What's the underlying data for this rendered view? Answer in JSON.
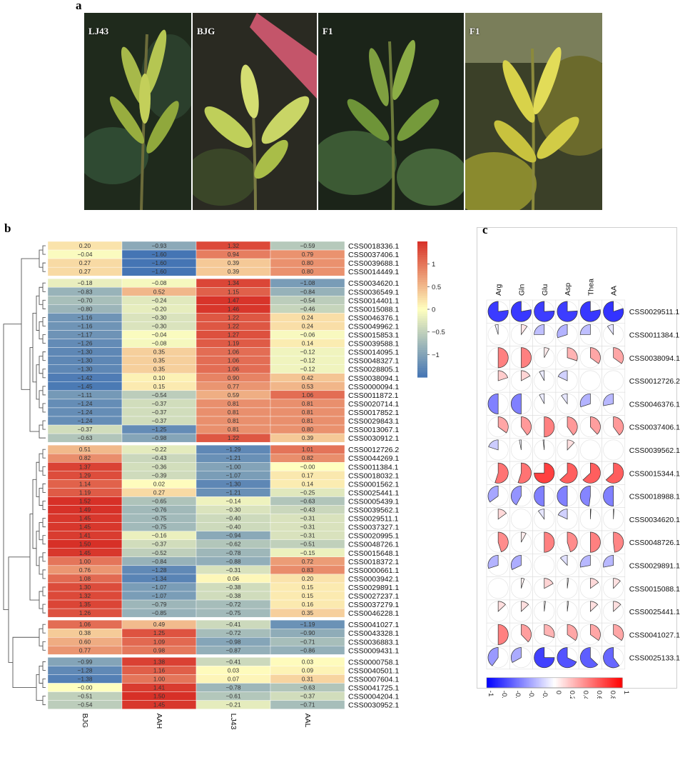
{
  "figure_labels": {
    "a": "a",
    "b": "b",
    "c": "c"
  },
  "photos": [
    {
      "label": "LJ43",
      "tone": "#8ea63a"
    },
    {
      "label": "BJG",
      "tone": "#b9c64a"
    },
    {
      "label": "F1",
      "tone": "#6b8d33"
    },
    {
      "label": "F1",
      "tone": "#c9c33a"
    }
  ],
  "chart_data": [
    {
      "type": "heatmap",
      "title": "",
      "columns": [
        "BJG",
        "AAH",
        "LJ43",
        "AAL"
      ],
      "color_scale": {
        "min": -1.5,
        "max": 1.5,
        "ticks": [
          1,
          0.5,
          0,
          -0.5,
          -1
        ],
        "tick_labels": [
          "1",
          "0.5",
          "0",
          "−0.5",
          "−1"
        ],
        "low": "#4575b4",
        "mid": "#ffffbf",
        "high": "#d73027"
      },
      "rows": [
        {
          "gene": "CSS0018336.1",
          "values": [
            0.2,
            -0.93,
            1.32,
            -0.59
          ]
        },
        {
          "gene": "CSS0037406.1",
          "values": [
            -0.04,
            -1.6,
            0.94,
            0.79
          ]
        },
        {
          "gene": "CSS0039688.1",
          "values": [
            0.27,
            -1.6,
            0.39,
            0.8
          ]
        },
        {
          "gene": "CSS0014449.1",
          "values": [
            0.27,
            -1.6,
            0.39,
            0.8
          ]
        },
        {
          "gene": "CSS0034620.1",
          "values": [
            -0.18,
            -0.08,
            1.34,
            -1.08
          ]
        },
        {
          "gene": "CSS0036549.1",
          "values": [
            -0.83,
            0.52,
            1.15,
            -0.84
          ]
        },
        {
          "gene": "CSS0014401.1",
          "values": [
            -0.7,
            -0.24,
            1.47,
            -0.54
          ]
        },
        {
          "gene": "CSS0015088.1",
          "values": [
            -0.8,
            -0.2,
            1.46,
            -0.46
          ]
        },
        {
          "gene": "CSS0046376.1",
          "values": [
            -1.16,
            -0.3,
            1.22,
            0.24
          ]
        },
        {
          "gene": "CSS0049962.1",
          "values": [
            -1.16,
            -0.3,
            1.22,
            0.24
          ]
        },
        {
          "gene": "CSS0015853.1",
          "values": [
            -1.17,
            -0.04,
            1.27,
            -0.06
          ]
        },
        {
          "gene": "CSS0039588.1",
          "values": [
            -1.26,
            -0.08,
            1.19,
            0.14
          ]
        },
        {
          "gene": "CSS0014095.1",
          "values": [
            -1.3,
            0.35,
            1.06,
            -0.12
          ]
        },
        {
          "gene": "CSS0048327.1",
          "values": [
            -1.3,
            0.35,
            1.06,
            -0.12
          ]
        },
        {
          "gene": "CSS0028805.1",
          "values": [
            -1.3,
            0.35,
            1.06,
            -0.12
          ]
        },
        {
          "gene": "CSS0038094.1",
          "values": [
            -1.42,
            0.1,
            0.9,
            0.42
          ]
        },
        {
          "gene": "CSS0000094.1",
          "values": [
            -1.45,
            0.15,
            0.77,
            0.53
          ]
        },
        {
          "gene": "CSS0011872.1",
          "values": [
            -1.11,
            -0.54,
            0.59,
            1.06
          ]
        },
        {
          "gene": "CSS0020714.1",
          "values": [
            -1.24,
            -0.37,
            0.81,
            0.81
          ]
        },
        {
          "gene": "CSS0017852.1",
          "values": [
            -1.24,
            -0.37,
            0.81,
            0.81
          ]
        },
        {
          "gene": "CSS0029843.1",
          "values": [
            -1.24,
            -0.37,
            0.81,
            0.81
          ]
        },
        {
          "gene": "CSS0013067.1",
          "values": [
            -0.37,
            -1.25,
            0.81,
            0.8
          ]
        },
        {
          "gene": "CSS0030912.1",
          "values": [
            -0.63,
            -0.98,
            1.22,
            0.39
          ]
        },
        {
          "gene": "CSS0012726.2",
          "values": [
            0.51,
            -0.22,
            -1.29,
            1.01
          ]
        },
        {
          "gene": "CSS0044269.1",
          "values": [
            0.82,
            -0.43,
            -1.21,
            0.82
          ]
        },
        {
          "gene": "CSS0011384.1",
          "values": [
            1.37,
            -0.36,
            -1.0,
            -0.0
          ]
        },
        {
          "gene": "CSS0018032.1",
          "values": [
            1.29,
            -0.39,
            -1.07,
            0.17
          ]
        },
        {
          "gene": "CSS0001562.1",
          "values": [
            1.14,
            0.02,
            -1.3,
            0.14
          ]
        },
        {
          "gene": "CSS0025441.1",
          "values": [
            1.19,
            0.27,
            -1.21,
            -0.25
          ]
        },
        {
          "gene": "CSS0005439.1",
          "values": [
            1.52,
            -0.65,
            -0.14,
            -0.63
          ]
        },
        {
          "gene": "CSS0039562.1",
          "values": [
            1.49,
            -0.76,
            -0.3,
            -0.43
          ]
        },
        {
          "gene": "CSS0029511.1",
          "values": [
            1.45,
            -0.75,
            -0.4,
            -0.31
          ]
        },
        {
          "gene": "CSS0037327.1",
          "values": [
            1.45,
            -0.75,
            -0.4,
            -0.31
          ]
        },
        {
          "gene": "CSS0020995.1",
          "values": [
            1.41,
            -0.16,
            -0.94,
            -0.31
          ]
        },
        {
          "gene": "CSS0048726.1",
          "values": [
            1.5,
            -0.37,
            -0.62,
            -0.51
          ]
        },
        {
          "gene": "CSS0015648.1",
          "values": [
            1.45,
            -0.52,
            -0.78,
            -0.15
          ]
        },
        {
          "gene": "CSS0018372.1",
          "values": [
            1.0,
            -0.84,
            -0.88,
            0.72
          ]
        },
        {
          "gene": "CSS0000661.1",
          "values": [
            0.76,
            -1.28,
            -0.31,
            0.83
          ]
        },
        {
          "gene": "CSS0003942.1",
          "values": [
            1.08,
            -1.34,
            0.06,
            0.2
          ]
        },
        {
          "gene": "CSS0029891.1",
          "values": [
            1.3,
            -1.07,
            -0.38,
            0.15
          ]
        },
        {
          "gene": "CSS0027237.1",
          "values": [
            1.32,
            -1.07,
            -0.38,
            0.15
          ]
        },
        {
          "gene": "CSS0037279.1",
          "values": [
            1.35,
            -0.79,
            -0.72,
            0.16
          ]
        },
        {
          "gene": "CSS0046228.1",
          "values": [
            1.26,
            -0.85,
            -0.75,
            0.35
          ]
        },
        {
          "gene": "CSS0041027.1",
          "values": [
            1.06,
            0.49,
            -0.41,
            -1.19
          ]
        },
        {
          "gene": "CSS0043328.1",
          "values": [
            0.38,
            1.25,
            -0.72,
            -0.9
          ]
        },
        {
          "gene": "CSS0036883.1",
          "values": [
            0.6,
            1.09,
            -0.98,
            -0.71
          ]
        },
        {
          "gene": "CSS0009431.1",
          "values": [
            0.77,
            0.98,
            -0.87,
            -0.86
          ]
        },
        {
          "gene": "CSS0000758.1",
          "values": [
            -0.99,
            1.38,
            -0.41,
            0.03
          ]
        },
        {
          "gene": "CSS0040501.1",
          "values": [
            -1.28,
            1.16,
            0.03,
            0.09
          ]
        },
        {
          "gene": "CSS0007604.1",
          "values": [
            -1.38,
            1.0,
            0.07,
            0.31
          ]
        },
        {
          "gene": "CSS0041725.1",
          "values": [
            -0.0,
            1.41,
            -0.78,
            -0.63
          ]
        },
        {
          "gene": "CSS0004204.1",
          "values": [
            -0.51,
            1.5,
            -0.61,
            -0.37
          ]
        },
        {
          "gene": "CSS0030952.1",
          "values": [
            -0.54,
            1.45,
            -0.21,
            -0.71
          ]
        }
      ],
      "row_groups": [
        4,
        19,
        20,
        4,
        6
      ]
    },
    {
      "type": "heatmap",
      "title": "",
      "columns": [
        "Arg",
        "Gln",
        "Glu",
        "Asp",
        "Thea",
        "AA"
      ],
      "color_scale": {
        "min": -1,
        "max": 1,
        "ticks": [
          -1,
          -0.8,
          -0.6,
          -0.4,
          -0.2,
          0,
          0.2,
          0.4,
          0.6,
          0.8,
          1
        ],
        "tick_labels": [
          "-1",
          "-0.8",
          "-0.6",
          "-0.4",
          "-0.2",
          "0",
          "0.2",
          "0.4",
          "0.6",
          "0.8",
          "1"
        ],
        "low": "#0000ff",
        "mid": "#ffffff",
        "high": "#ff0000"
      },
      "rows": [
        {
          "gene": "CSS0029511.1",
          "values": [
            -0.77,
            -0.78,
            -0.76,
            -0.76,
            -0.78,
            -0.8
          ]
        },
        {
          "gene": "CSS0011384.1",
          "values": [
            -0.05,
            0.1,
            -0.25,
            -0.3,
            -0.25,
            -0.1
          ]
        },
        {
          "gene": "CSS0038094.1",
          "values": [
            0.5,
            0.5,
            0.08,
            0.3,
            0.35,
            0.35
          ]
        },
        {
          "gene": "CSS0012726.2",
          "values": [
            0.2,
            0.17,
            -0.08,
            -0.18,
            0.0,
            0.0
          ]
        },
        {
          "gene": "CSS0046376.1",
          "values": [
            -0.5,
            -0.5,
            -0.08,
            -0.1,
            -0.3,
            -0.28
          ]
        },
        {
          "gene": "CSS0037406.1",
          "values": [
            0.35,
            0.4,
            0.5,
            0.4,
            0.38,
            0.4
          ]
        },
        {
          "gene": "CSS0039562.1",
          "values": [
            -0.2,
            -0.03,
            -0.02,
            0.12,
            0.0,
            0.0
          ]
        },
        {
          "gene": "CSS0015344.1",
          "values": [
            0.55,
            0.55,
            0.75,
            0.63,
            0.63,
            0.63
          ]
        },
        {
          "gene": "CSS0018988.1",
          "values": [
            -0.35,
            -0.42,
            -0.5,
            -0.5,
            -0.48,
            -0.5
          ]
        },
        {
          "gene": "CSS0034620.1",
          "values": [
            0.15,
            0.0,
            -0.1,
            -0.18,
            0.01,
            0.01
          ]
        },
        {
          "gene": "CSS0048726.1",
          "values": [
            0.45,
            0.08,
            0.5,
            0.45,
            0.5,
            0.48
          ]
        },
        {
          "gene": "CSS0029891.1",
          "values": [
            -0.3,
            -0.32,
            0.0,
            -0.12,
            -0.28,
            -0.28
          ]
        },
        {
          "gene": "CSS0015088.1",
          "values": [
            0.0,
            0.05,
            0.17,
            0.02,
            0.15,
            0.12
          ]
        },
        {
          "gene": "CSS0025441.1",
          "values": [
            0.13,
            0.13,
            0.02,
            0.02,
            0.13,
            0.13
          ]
        },
        {
          "gene": "CSS0041027.1",
          "values": [
            0.5,
            0.38,
            0.3,
            0.35,
            0.35,
            0.35
          ]
        },
        {
          "gene": "CSS0025133.1",
          "values": [
            -0.4,
            -0.33,
            -0.75,
            -0.68,
            -0.63,
            -0.6
          ]
        }
      ]
    }
  ]
}
